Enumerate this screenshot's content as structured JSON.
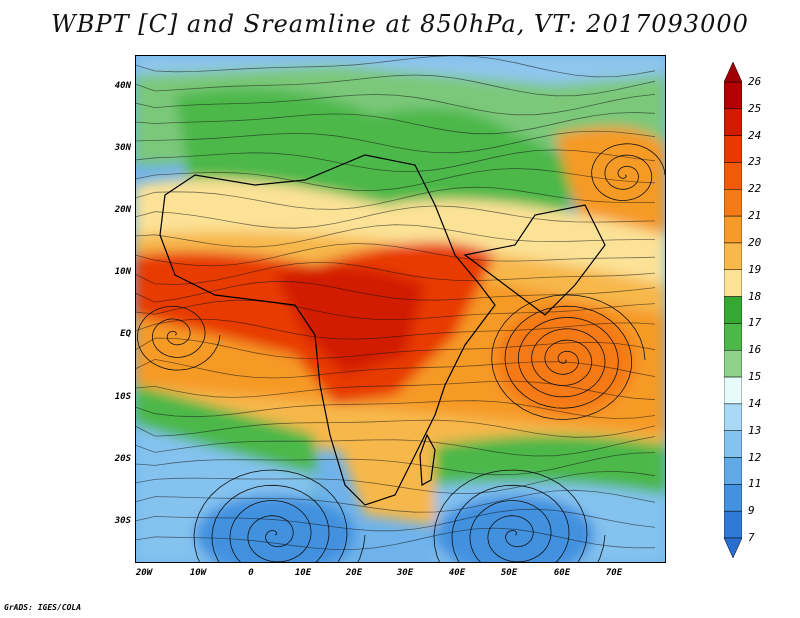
{
  "title": "WBPT [C] and Sreamline at 850hPa, VT: 2017093000",
  "credit": "GrADS: IGES/COLA",
  "y_ticks": [
    "40N",
    "30N",
    "20N",
    "10N",
    "EQ",
    "10S",
    "20S",
    "30S"
  ],
  "x_ticks": [
    "20W",
    "10W",
    "0",
    "10E",
    "20E",
    "30E",
    "40E",
    "50E",
    "60E",
    "70E"
  ],
  "colorbar": {
    "labels": [
      "26",
      "25",
      "24",
      "23",
      "22",
      "21",
      "20",
      "19",
      "18",
      "17",
      "16",
      "15",
      "14",
      "13",
      "12",
      "11",
      "9",
      "7"
    ],
    "colors": [
      "#b30000",
      "#d21a00",
      "#e83a00",
      "#f25a0a",
      "#f57a14",
      "#f69a28",
      "#f7b84c",
      "#fbe296",
      "#34a832",
      "#4cb848",
      "#8fd28c",
      "#e7fbfb",
      "#a9d9f5",
      "#84c2ef",
      "#61a9e7",
      "#4391df",
      "#2e7ad6"
    ]
  },
  "chart_data": {
    "type": "heatmap",
    "variable": "WBPT [C]",
    "level": "850hPa",
    "valid_time": "2017093000",
    "lon_range": [
      -22,
      80
    ],
    "lat_range": [
      -36,
      45
    ],
    "color_levels": [
      7,
      9,
      11,
      12,
      13,
      14,
      15,
      16,
      17,
      18,
      19,
      20,
      21,
      22,
      23,
      24,
      25,
      26
    ],
    "features": [
      "cyclonic circulation near 63E 5S",
      "anticyclones near 10E 30S and 45E 30S"
    ]
  }
}
